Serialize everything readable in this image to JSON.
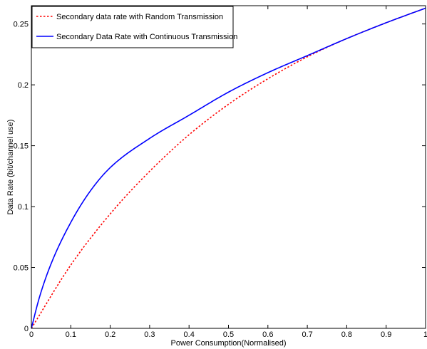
{
  "chart_data": {
    "type": "line",
    "xlabel": "Power Consumption(Normalised)",
    "ylabel": "Data Rate (bit/channel use)",
    "xlim": [
      0,
      1
    ],
    "ylim": [
      0,
      0.265
    ],
    "xticks": [
      0,
      0.1,
      0.2,
      0.3,
      0.4,
      0.5,
      0.6,
      0.7,
      0.8,
      0.9,
      1
    ],
    "xtick_labels": [
      "0",
      "0.1",
      "0.2",
      "0.3",
      "0.4",
      "0.5",
      "0.6",
      "0.7",
      "0.8",
      "0.9",
      "1"
    ],
    "yticks": [
      0,
      0.05,
      0.1,
      0.15,
      0.2,
      0.25
    ],
    "ytick_labels": [
      "0",
      "0.05",
      "0.1",
      "0.15",
      "0.2",
      "0.25"
    ],
    "grid": false,
    "legend_position": "top-left",
    "series": [
      {
        "name": "Secondary data rate with Random Transmission",
        "color": "#ff0000",
        "style": "dotted",
        "x": [
          0,
          0.1,
          0.2,
          0.3,
          0.4,
          0.5,
          0.6,
          0.7,
          0.8,
          0.9,
          1
        ],
        "y": [
          0,
          0.052,
          0.094,
          0.129,
          0.159,
          0.184,
          0.205,
          0.223,
          0.238,
          0.251,
          0.263
        ]
      },
      {
        "name": "Secondary Data Rate with Continuous Transmission",
        "color": "#0000ff",
        "style": "solid",
        "x": [
          0,
          0.02,
          0.05,
          0.1,
          0.15,
          0.2,
          0.3,
          0.4,
          0.5,
          0.6,
          0.7,
          0.8,
          0.9,
          1
        ],
        "y": [
          0,
          0.025,
          0.053,
          0.087,
          0.113,
          0.132,
          0.156,
          0.175,
          0.194,
          0.21,
          0.224,
          0.238,
          0.251,
          0.263
        ]
      }
    ]
  }
}
